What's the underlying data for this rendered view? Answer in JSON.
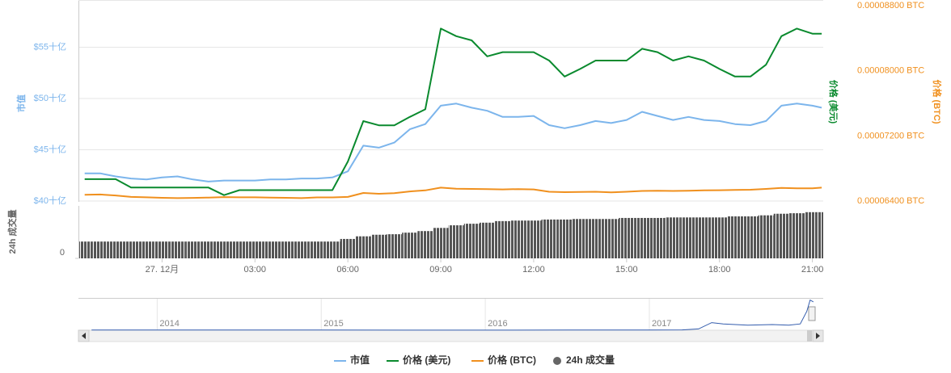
{
  "chart_data": [
    {
      "type": "line",
      "x": [
        -2.5,
        -2,
        -1.5,
        -1,
        -0.5,
        0,
        0.5,
        1,
        1.5,
        2,
        2.5,
        3,
        3.5,
        4,
        4.5,
        5,
        5.5,
        6,
        6.5,
        7,
        7.5,
        8,
        8.5,
        9,
        9.5,
        10,
        10.5,
        11,
        11.5,
        12,
        12.5,
        13,
        13.5,
        14,
        14.5,
        15,
        15.5,
        16,
        16.5,
        17,
        17.5,
        18,
        18.5,
        19,
        19.5,
        20,
        20.5,
        21,
        21.3
      ],
      "xlim": [
        -2.7,
        21.35
      ],
      "xticks": [
        {
          "value": 0,
          "label": "27. 12月"
        },
        {
          "value": 3,
          "label": "03:00"
        },
        {
          "value": 6,
          "label": "06:00"
        },
        {
          "value": 9,
          "label": "09:00"
        },
        {
          "value": 12,
          "label": "12:00"
        },
        {
          "value": 15,
          "label": "15:00"
        },
        {
          "value": 18,
          "label": "18:00"
        },
        {
          "value": 21,
          "label": "21:00"
        }
      ],
      "ylabel": "市值",
      "ylim": [
        40,
        59.6
      ],
      "yticks": [
        {
          "value": 40,
          "label": "$40十亿"
        },
        {
          "value": 45,
          "label": "$45十亿"
        },
        {
          "value": 50,
          "label": "$50十亿"
        },
        {
          "value": 55,
          "label": "$55十亿"
        }
      ],
      "y2label": "价格 (BTC)",
      "y2lim": [
        6.4e-05,
        8.87e-05
      ],
      "y2ticks": [
        {
          "value": 6.4e-05,
          "label": "0.00006400 BTC"
        },
        {
          "value": 7.2e-05,
          "label": "0.00007200 BTC"
        },
        {
          "value": 8e-05,
          "label": "0.00008000 BTC"
        },
        {
          "value": 8.8e-05,
          "label": "0.00008800 BTC"
        }
      ],
      "y3label": "价格 (美元)",
      "y3lim": [
        1.061,
        1.3
      ],
      "volume_label": "24h 成交量",
      "volume_lim": [
        0,
        10
      ],
      "volume_ticks": [
        0
      ],
      "grid": true,
      "series": [
        {
          "name": "市值",
          "color": "#7cb5ec",
          "axis": "y",
          "values": [
            42.7,
            42.7,
            42.4,
            42.2,
            42.1,
            42.3,
            42.4,
            42.1,
            41.9,
            42.0,
            42.0,
            42.0,
            42.1,
            42.1,
            42.2,
            42.2,
            42.3,
            42.9,
            45.4,
            45.2,
            45.7,
            47.0,
            47.5,
            49.3,
            49.5,
            49.1,
            48.8,
            48.2,
            48.2,
            48.3,
            47.4,
            47.1,
            47.4,
            47.8,
            47.6,
            47.9,
            48.7,
            48.3,
            47.9,
            48.2,
            47.9,
            47.8,
            47.5,
            47.4,
            47.8,
            49.3,
            49.5,
            49.3,
            49.1
          ]
        },
        {
          "name": "价格 (美元)",
          "color": "#0a8a2e",
          "axis": "y3",
          "values": [
            1.087,
            1.087,
            1.087,
            1.077,
            1.077,
            1.077,
            1.077,
            1.077,
            1.077,
            1.068,
            1.074,
            1.074,
            1.074,
            1.074,
            1.074,
            1.074,
            1.074,
            1.108,
            1.156,
            1.151,
            1.151,
            1.161,
            1.17,
            1.266,
            1.257,
            1.252,
            1.233,
            1.238,
            1.238,
            1.238,
            1.228,
            1.209,
            1.218,
            1.228,
            1.228,
            1.228,
            1.242,
            1.238,
            1.228,
            1.233,
            1.228,
            1.218,
            1.209,
            1.209,
            1.223,
            1.257,
            1.266,
            1.26,
            1.26
          ]
        },
        {
          "name": "价格 (BTC)",
          "color": "#f0901e",
          "axis": "y2",
          "values": [
            6.477e-05,
            6.48e-05,
            6.468e-05,
            6.451e-05,
            6.446e-05,
            6.44e-05,
            6.436e-05,
            6.439e-05,
            6.443e-05,
            6.449e-05,
            6.446e-05,
            6.446e-05,
            6.443e-05,
            6.44e-05,
            6.436e-05,
            6.445e-05,
            6.445e-05,
            6.451e-05,
            6.499e-05,
            6.489e-05,
            6.497e-05,
            6.518e-05,
            6.531e-05,
            6.565e-05,
            6.552e-05,
            6.549e-05,
            6.546e-05,
            6.543e-05,
            6.547e-05,
            6.543e-05,
            6.514e-05,
            6.509e-05,
            6.512e-05,
            6.514e-05,
            6.506e-05,
            6.514e-05,
            6.524e-05,
            6.527e-05,
            6.524e-05,
            6.527e-05,
            6.531e-05,
            6.533e-05,
            6.537e-05,
            6.539e-05,
            6.549e-05,
            6.562e-05,
            6.556e-05,
            6.556e-05,
            6.565e-05
          ]
        },
        {
          "name": "24h 成交量",
          "color": "#666666",
          "axis": "volume",
          "type": "bar",
          "values": [
            3.2,
            3.2,
            3.2,
            3.2,
            3.2,
            3.2,
            3.2,
            3.2,
            3.2,
            3.2,
            3.2,
            3.2,
            3.2,
            3.2,
            3.2,
            3.2,
            3.2,
            3.7,
            4.2,
            4.5,
            4.6,
            4.9,
            5.2,
            5.8,
            6.3,
            6.6,
            6.8,
            7.1,
            7.2,
            7.2,
            7.4,
            7.4,
            7.5,
            7.5,
            7.5,
            7.7,
            7.7,
            7.7,
            7.8,
            7.8,
            7.8,
            7.8,
            8.0,
            8.0,
            8.2,
            8.5,
            8.6,
            8.8,
            8.8
          ]
        }
      ]
    },
    {
      "type": "line",
      "x": [
        2013.6,
        2014,
        2014.5,
        2015,
        2015.5,
        2016,
        2016.5,
        2017,
        2017.2,
        2017.3,
        2017.38,
        2017.45,
        2017.6,
        2017.75,
        2017.85,
        2017.92,
        2017.96,
        2017.98,
        2018.0
      ],
      "values": [
        0.2,
        0.3,
        0.2,
        0.2,
        0.1,
        0.1,
        0.2,
        0.3,
        0.5,
        2.0,
        12,
        10,
        8,
        9,
        8,
        10,
        30,
        48,
        45
      ],
      "color": "#335cad",
      "xlim": [
        2013.52,
        2018.06
      ],
      "ylim": [
        0,
        50
      ],
      "xticks": [
        2014,
        2015,
        2016,
        2017
      ]
    }
  ]
}
